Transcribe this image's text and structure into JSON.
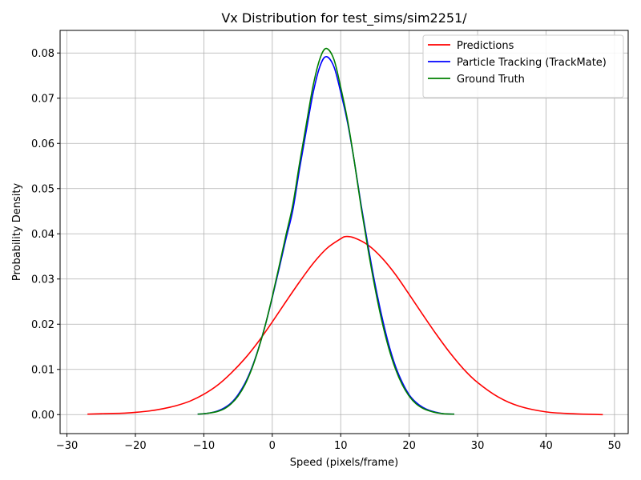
{
  "chart_data": {
    "type": "line",
    "title": "Vx Distribution for test_sims/sim2251/",
    "xlabel": "Speed (pixels/frame)",
    "ylabel": "Probability Density",
    "xlim": [
      -31,
      52
    ],
    "ylim": [
      -0.0042,
      0.085
    ],
    "xticks": [
      -30,
      -20,
      -10,
      0,
      10,
      20,
      30,
      40,
      50
    ],
    "xtick_labels": [
      "−30",
      "−20",
      "−10",
      "0",
      "10",
      "20",
      "30",
      "40",
      "50"
    ],
    "yticks": [
      0.0,
      0.01,
      0.02,
      0.03,
      0.04,
      0.05,
      0.06,
      0.07,
      0.08
    ],
    "ytick_labels": [
      "0.00",
      "0.01",
      "0.02",
      "0.03",
      "0.04",
      "0.05",
      "0.06",
      "0.07",
      "0.08"
    ],
    "grid": true,
    "legend_position": "top-right",
    "series": [
      {
        "name": "Predictions",
        "color": "#ff0000",
        "x": [
          -27,
          -25,
          -22,
          -20,
          -18,
          -16,
          -14,
          -12,
          -10,
          -8,
          -6,
          -4,
          -2,
          0,
          2,
          4,
          6,
          8,
          10,
          10.7,
          12,
          14,
          16,
          18,
          20,
          22,
          24,
          26,
          28,
          30,
          33,
          36,
          40,
          44,
          48.3
        ],
        "y": [
          0.0001,
          0.0002,
          0.0003,
          0.0005,
          0.0008,
          0.0013,
          0.002,
          0.003,
          0.0045,
          0.0065,
          0.0092,
          0.0124,
          0.0162,
          0.0205,
          0.025,
          0.0294,
          0.0335,
          0.0368,
          0.0389,
          0.0394,
          0.0391,
          0.0375,
          0.0347,
          0.031,
          0.0266,
          0.0221,
          0.0177,
          0.0136,
          0.01,
          0.0071,
          0.0039,
          0.0019,
          0.0006,
          0.0002,
          0.0
        ]
      },
      {
        "name": "Particle Tracking (TrackMate)",
        "color": "#0000ff",
        "x": [
          -10.9,
          -10,
          -9,
          -8,
          -7,
          -6,
          -5,
          -4,
          -3,
          -2,
          -1,
          0,
          1,
          2,
          3,
          4,
          5,
          6,
          7,
          7.9,
          9,
          10,
          11,
          12,
          13,
          14,
          15,
          16,
          17,
          18,
          19,
          20,
          21,
          22,
          23,
          24,
          25,
          26.6
        ],
        "y": [
          0.0001,
          0.0002,
          0.0004,
          0.0008,
          0.0015,
          0.0026,
          0.0044,
          0.0069,
          0.0103,
          0.0147,
          0.0199,
          0.0259,
          0.0323,
          0.0389,
          0.0452,
          0.0545,
          0.0631,
          0.0714,
          0.0772,
          0.0792,
          0.077,
          0.0713,
          0.0646,
          0.0559,
          0.0462,
          0.0373,
          0.029,
          0.0218,
          0.0156,
          0.0107,
          0.0071,
          0.0044,
          0.0027,
          0.0016,
          0.0009,
          0.0005,
          0.0002,
          0.0001
        ]
      },
      {
        "name": "Ground Truth",
        "color": "#008000",
        "x": [
          -10.9,
          -10,
          -9,
          -8,
          -7,
          -6,
          -5,
          -4,
          -3,
          -2,
          -1,
          0,
          1,
          2,
          3,
          4,
          5,
          6,
          7,
          7.9,
          9,
          10,
          11,
          12,
          13,
          14,
          15,
          16,
          17,
          18,
          19,
          20,
          21,
          22,
          23,
          24,
          25,
          26.6
        ],
        "y": [
          0.0001,
          0.0002,
          0.0004,
          0.0007,
          0.0013,
          0.0024,
          0.0041,
          0.0066,
          0.0101,
          0.0146,
          0.0199,
          0.0261,
          0.0328,
          0.0397,
          0.0464,
          0.0557,
          0.0645,
          0.073,
          0.0789,
          0.081,
          0.0786,
          0.0724,
          0.0651,
          0.0559,
          0.0457,
          0.0365,
          0.0281,
          0.0208,
          0.0148,
          0.0101,
          0.0066,
          0.0041,
          0.0024,
          0.0014,
          0.0008,
          0.0004,
          0.0002,
          0.0001
        ]
      }
    ]
  }
}
